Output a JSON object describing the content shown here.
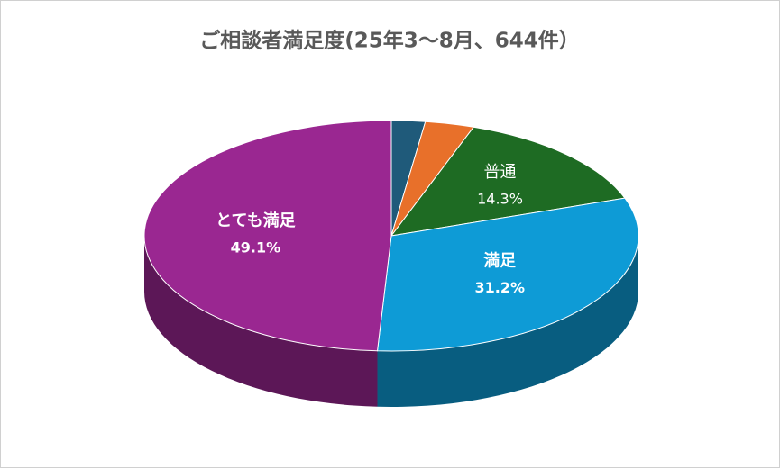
{
  "chart_data": {
    "type": "pie3d",
    "title": "ご相談者満足度(25年3～8月、644件）",
    "categories": [
      null,
      null,
      "普通",
      "満足",
      "とても満足"
    ],
    "values": [
      2.2,
      3.2,
      14.3,
      31.2,
      49.1
    ],
    "value_labels": [
      null,
      null,
      "14.3%",
      "31.2%",
      "49.1%"
    ],
    "colors": [
      "#1f5a7a",
      "#e8702a",
      "#1e6b23",
      "#0e9bd6",
      "#9a2791"
    ]
  }
}
